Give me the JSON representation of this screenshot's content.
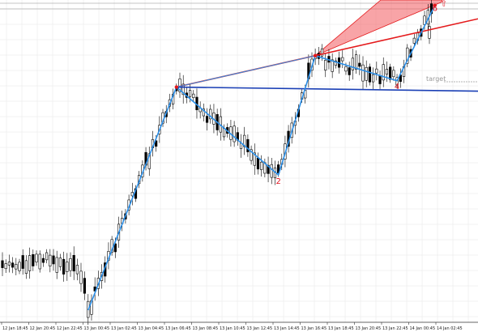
{
  "chart_data": {
    "type": "candlestick",
    "title": "",
    "xlabel": "",
    "ylabel": "",
    "grid": true,
    "x_ticks": [
      "12 Jan 18:45",
      "12 Jan 20:45",
      "12 Jan 22:45",
      "13 Jan 00:45",
      "13 Jan 02:45",
      "13 Jan 04:45",
      "13 Jan 06:45",
      "13 Jan 08:45",
      "13 Jan 10:45",
      "13 Jan 12:45",
      "13 Jan 14:45",
      "13 Jan 16:45",
      "13 Jan 18:45",
      "13 Jan 20:45",
      "13 Jan 22:45",
      "14 Jan 00:45",
      "14 Jan 02:45"
    ],
    "wave_points": [
      {
        "label": "",
        "x": 17.3,
        "y": 0.0
      },
      {
        "label": "",
        "x": 34.8,
        "y": 71.0
      },
      {
        "label": "2",
        "x": 55.0,
        "y": 43.0
      },
      {
        "label": "",
        "x": 62.3,
        "y": 81.0
      },
      {
        "label": "4",
        "x": 78.5,
        "y": 73.0
      },
      {
        "label": "6",
        "x": 86.0,
        "y": 97.0
      }
    ],
    "annotations": {
      "target_label": "target",
      "target_level": 71.0,
      "arrow_glyph": "⇧"
    },
    "colors": {
      "wave_line": "#2b8fe8",
      "resistance_line": "#e41a1c",
      "support_line": "#1a3fb5",
      "target_zone": "#f25a5e",
      "wave_label": "#e0101c",
      "candle": "#000000",
      "grid": "#e6e6e6"
    }
  }
}
